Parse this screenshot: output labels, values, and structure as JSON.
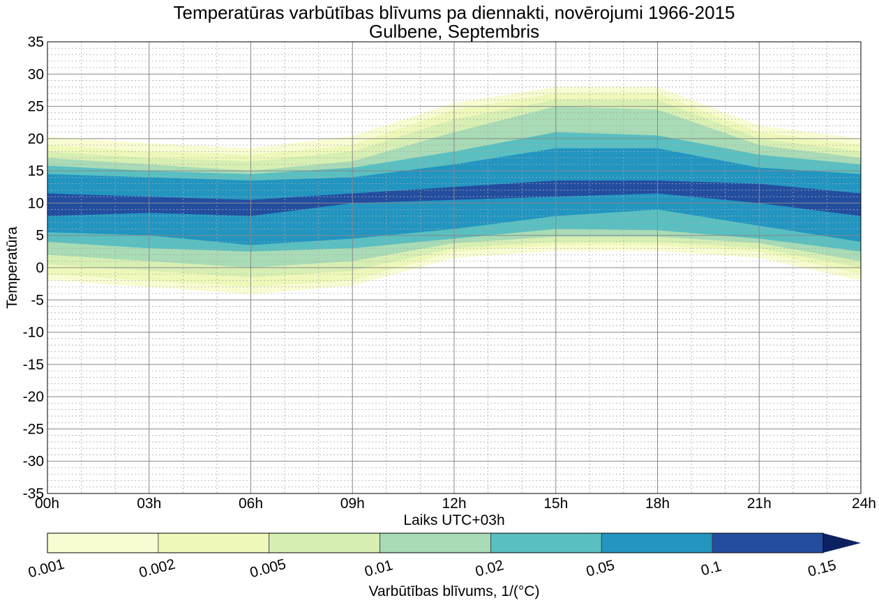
{
  "chart_data": {
    "type": "contourf",
    "title": "Temperatūras varbūtības blīvums pa diennakti, novērojumi 1966-2015",
    "subtitle": "Gulbene, Septembris",
    "xlabel": "Laiks UTC+03h",
    "ylabel": "Temperatūra",
    "xlim": [
      0,
      24
    ],
    "ylim": [
      -35,
      35
    ],
    "x_ticks": [
      "00h",
      "03h",
      "06h",
      "09h",
      "12h",
      "15h",
      "18h",
      "21h",
      "24h"
    ],
    "y_ticks": [
      "35",
      "30",
      "25",
      "20",
      "15",
      "10",
      "5",
      "0",
      "-5",
      "-10",
      "-15",
      "-20",
      "-25",
      "-30",
      "-35"
    ],
    "grid": true,
    "hours": [
      0,
      3,
      6,
      9,
      12,
      15,
      18,
      21,
      24
    ],
    "levels": [
      {
        "min": 0.001,
        "color": "#f9fbd2",
        "upper": [
          20.3,
          19.3,
          18.5,
          20.4,
          25.5,
          28,
          28,
          22,
          20
        ],
        "lower": [
          -1.9,
          -3,
          -4.1,
          -2.8,
          1.5,
          2.6,
          2.6,
          1.5,
          -2
        ]
      },
      {
        "min": 0.002,
        "color": "#eef8b9",
        "upper": [
          19,
          18,
          17.5,
          19,
          24.5,
          27,
          27,
          21,
          19
        ],
        "lower": [
          -1,
          -2,
          -3,
          -2,
          2.5,
          3.5,
          3.5,
          2.5,
          -1
        ]
      },
      {
        "min": 0.005,
        "color": "#d8efb3",
        "upper": [
          18,
          17,
          16.5,
          18,
          23,
          26,
          26,
          20,
          18
        ],
        "lower": [
          0.5,
          -0.5,
          -1.5,
          -0.5,
          3,
          4,
          4,
          3,
          0
        ]
      },
      {
        "min": 0.01,
        "color": "#a8dbb6",
        "upper": [
          17,
          16,
          15,
          16.5,
          21,
          25,
          24.5,
          19,
          17
        ],
        "lower": [
          2,
          1,
          0,
          1,
          3.8,
          4.8,
          4.8,
          3.8,
          1
        ]
      },
      {
        "min": 0.02,
        "color": "#5abfc0",
        "upper": [
          15.8,
          15,
          14.5,
          15.5,
          18,
          21,
          20.5,
          17.5,
          16
        ],
        "lower": [
          4,
          3,
          2.5,
          3,
          4.5,
          6,
          5.8,
          4.5,
          2.5
        ]
      },
      {
        "min": 0.05,
        "color": "#2295c1",
        "upper": [
          14.5,
          14,
          13.5,
          14,
          16,
          18.5,
          18.5,
          15.5,
          14.5
        ],
        "lower": [
          5.5,
          5,
          3.5,
          4.5,
          6,
          8,
          9,
          6.5,
          4
        ]
      },
      {
        "min": 0.1,
        "color": "#234ea0",
        "upper": [
          11.5,
          11,
          10.5,
          11.5,
          12.5,
          13.5,
          13.5,
          13,
          11.5
        ],
        "lower": [
          8,
          8.5,
          8,
          10,
          10.5,
          11,
          11.5,
          10,
          8
        ]
      }
    ],
    "colorbar": {
      "label": "Varbūtības blīvums, 1/(°C)",
      "ticks": [
        "0.001",
        "0.002",
        "0.005",
        "0.01",
        "0.02",
        "0.05",
        "0.1",
        "0.15"
      ],
      "colors": [
        "#f9fbd2",
        "#eef8b9",
        "#d8efb3",
        "#a8dbb6",
        "#5abfc0",
        "#2295c1",
        "#234ea0"
      ],
      "extend_color": "#0c2161"
    }
  }
}
